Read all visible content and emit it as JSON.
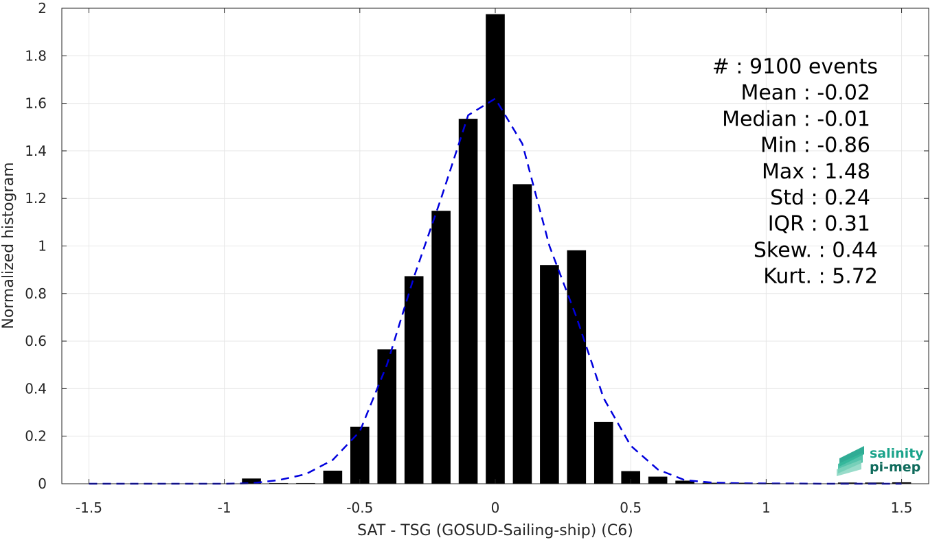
{
  "chart_data": {
    "type": "bar",
    "xlabel": "SAT - TSG (GOSUD-Sailing-ship) (C6)",
    "ylabel": "Normalized histogram",
    "xlim": [
      -1.6,
      1.6
    ],
    "ylim": [
      0,
      2
    ],
    "grid": true,
    "x_ticks": [
      -1.5,
      -1,
      -0.5,
      0,
      0.5,
      1,
      1.5
    ],
    "x_tick_labels": [
      "-1.5",
      "-1",
      "-0.5",
      "0",
      "0.5",
      "1",
      "1.5"
    ],
    "y_ticks": [
      0,
      0.2,
      0.4,
      0.6,
      0.8,
      1,
      1.2,
      1.4,
      1.6,
      1.8,
      2
    ],
    "y_tick_labels": [
      "0",
      "0.2",
      "0.4",
      "0.6",
      "0.8",
      "1",
      "1.2",
      "1.4",
      "1.6",
      "1.8",
      "2"
    ],
    "bar_width": 0.07,
    "bar_color": "#000000",
    "bars": {
      "x": [
        -0.9,
        -0.8,
        -0.7,
        -0.6,
        -0.5,
        -0.4,
        -0.3,
        -0.2,
        -0.1,
        0,
        0.1,
        0.2,
        0.3,
        0.4,
        0.5,
        0.6,
        0.7,
        0.8,
        0.9,
        1.0,
        1.3,
        1.4,
        1.5
      ],
      "values": [
        0.022,
        0.003,
        0.003,
        0.055,
        0.24,
        0.565,
        0.873,
        1.148,
        1.535,
        1.975,
        1.26,
        0.92,
        0.982,
        0.26,
        0.053,
        0.03,
        0.013,
        0.004,
        0.004,
        0.003,
        0.005,
        0.005,
        0.006
      ]
    },
    "fit_line": {
      "style": "dashed",
      "color": "#0000dd",
      "x": [
        -1.5,
        -1.4,
        -1.3,
        -1.2,
        -1.1,
        -1.0,
        -0.9,
        -0.8,
        -0.7,
        -0.6,
        -0.5,
        -0.4,
        -0.3,
        -0.2,
        -0.1,
        0,
        0.1,
        0.2,
        0.3,
        0.4,
        0.5,
        0.6,
        0.7,
        0.8,
        0.9,
        1.0,
        1.1,
        1.2,
        1.3,
        1.4,
        1.5
      ],
      "y": [
        0,
        0,
        0,
        0,
        0,
        0,
        0.002,
        0.015,
        0.04,
        0.1,
        0.22,
        0.5,
        0.87,
        1.2,
        1.55,
        1.62,
        1.43,
        1.0,
        0.7,
        0.36,
        0.16,
        0.06,
        0.015,
        0.005,
        0.002,
        0.001,
        0.001,
        0,
        0,
        0,
        0
      ]
    },
    "stats": [
      {
        "label": "#  : 9100 events",
        "anchor": "end"
      },
      {
        "label": "Mean : -0.02",
        "anchor": "end"
      },
      {
        "label": "Median : -0.01",
        "anchor": "end"
      },
      {
        "label": "Min : -0.86",
        "anchor": "end"
      },
      {
        "label": "Max : 1.48",
        "anchor": "end"
      },
      {
        "label": "Std : 0.24",
        "anchor": "end"
      },
      {
        "label": "IQR : 0.31",
        "anchor": "end"
      },
      {
        "label": "Skew. : 0.44",
        "anchor": "end"
      },
      {
        "label": "Kurt. : 5.72",
        "anchor": "end"
      }
    ]
  },
  "logo": {
    "line1": "salinity",
    "line2": "pi-mep",
    "color_primary": "#1aa38a",
    "color_secondary": "#0f6b5c"
  }
}
